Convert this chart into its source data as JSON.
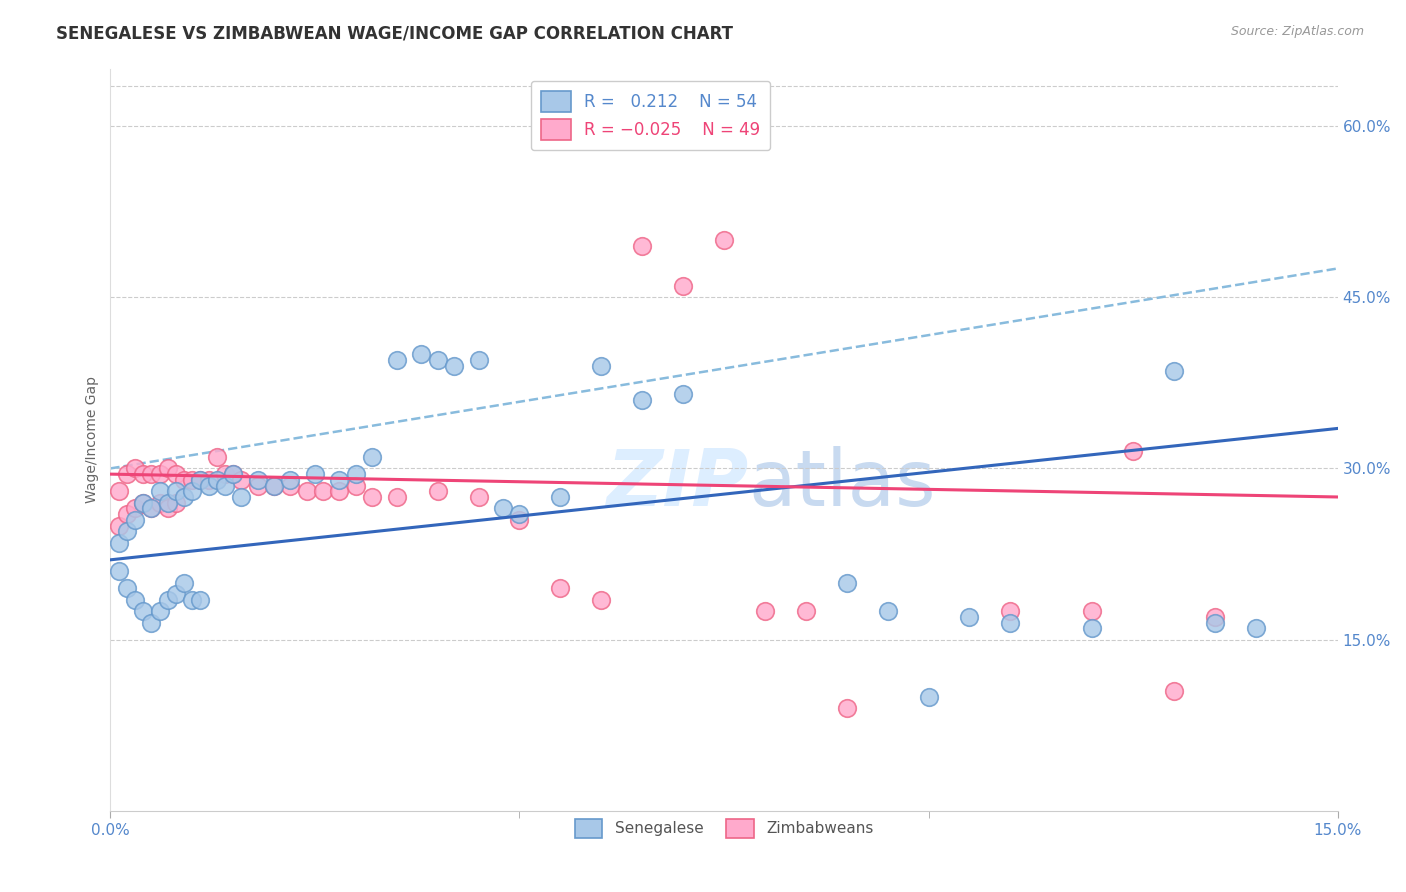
{
  "title": "SENEGALESE VS ZIMBABWEAN WAGE/INCOME GAP CORRELATION CHART",
  "source": "Source: ZipAtlas.com",
  "ylabel": "Wage/Income Gap",
  "xlim": [
    0.0,
    0.15
  ],
  "ylim": [
    0.0,
    0.65
  ],
  "ytick_vals": [
    0.15,
    0.3,
    0.45,
    0.6
  ],
  "ytick_labels": [
    "15.0%",
    "30.0%",
    "45.0%",
    "60.0%"
  ],
  "xtick_vals": [
    0.0,
    0.15
  ],
  "xtick_labels": [
    "0.0%",
    "15.0%"
  ],
  "xtick_minor_vals": [
    0.05,
    0.1
  ],
  "dot_color_blue": "#a8c8e8",
  "dot_edge_blue": "#6699cc",
  "dot_color_pink": "#ffaacc",
  "dot_edge_pink": "#ee6688",
  "line_color_blue": "#3366bb",
  "line_color_pink": "#ee4477",
  "dash_color_blue": "#88bbdd",
  "grid_color": "#cccccc",
  "axis_color": "#5588cc",
  "watermark_color": "#ddeeff",
  "background_color": "#ffffff",
  "title_fontsize": 12,
  "label_fontsize": 10,
  "tick_fontsize": 11,
  "blue_line": [
    0.0,
    0.22,
    0.15,
    0.335
  ],
  "pink_line": [
    0.0,
    0.295,
    0.15,
    0.275
  ],
  "dash_line": [
    0.0,
    0.3,
    0.15,
    0.475
  ],
  "sen_x": [
    0.001,
    0.001,
    0.002,
    0.002,
    0.003,
    0.003,
    0.004,
    0.004,
    0.005,
    0.005,
    0.006,
    0.006,
    0.007,
    0.007,
    0.008,
    0.008,
    0.009,
    0.009,
    0.01,
    0.01,
    0.011,
    0.011,
    0.012,
    0.013,
    0.014,
    0.015,
    0.016,
    0.018,
    0.02,
    0.022,
    0.025,
    0.028,
    0.03,
    0.032,
    0.035,
    0.038,
    0.04,
    0.042,
    0.045,
    0.048,
    0.05,
    0.055,
    0.06,
    0.065,
    0.07,
    0.09,
    0.095,
    0.1,
    0.105,
    0.11,
    0.12,
    0.13,
    0.135,
    0.14
  ],
  "sen_y": [
    0.235,
    0.21,
    0.245,
    0.195,
    0.255,
    0.185,
    0.27,
    0.175,
    0.265,
    0.165,
    0.28,
    0.175,
    0.27,
    0.185,
    0.28,
    0.19,
    0.275,
    0.2,
    0.28,
    0.185,
    0.29,
    0.185,
    0.285,
    0.29,
    0.285,
    0.295,
    0.275,
    0.29,
    0.285,
    0.29,
    0.295,
    0.29,
    0.295,
    0.31,
    0.395,
    0.4,
    0.395,
    0.39,
    0.395,
    0.265,
    0.26,
    0.275,
    0.39,
    0.36,
    0.365,
    0.2,
    0.175,
    0.1,
    0.17,
    0.165,
    0.16,
    0.385,
    0.165,
    0.16
  ],
  "zim_x": [
    0.001,
    0.001,
    0.002,
    0.002,
    0.003,
    0.003,
    0.004,
    0.004,
    0.005,
    0.005,
    0.006,
    0.006,
    0.007,
    0.007,
    0.008,
    0.008,
    0.009,
    0.01,
    0.011,
    0.012,
    0.013,
    0.014,
    0.015,
    0.016,
    0.018,
    0.02,
    0.022,
    0.024,
    0.026,
    0.028,
    0.03,
    0.032,
    0.035,
    0.04,
    0.045,
    0.05,
    0.055,
    0.06,
    0.065,
    0.07,
    0.075,
    0.08,
    0.085,
    0.09,
    0.11,
    0.12,
    0.125,
    0.13,
    0.135
  ],
  "zim_y": [
    0.28,
    0.25,
    0.295,
    0.26,
    0.3,
    0.265,
    0.295,
    0.27,
    0.295,
    0.265,
    0.295,
    0.27,
    0.3,
    0.265,
    0.295,
    0.27,
    0.29,
    0.29,
    0.29,
    0.29,
    0.31,
    0.295,
    0.295,
    0.29,
    0.285,
    0.285,
    0.285,
    0.28,
    0.28,
    0.28,
    0.285,
    0.275,
    0.275,
    0.28,
    0.275,
    0.255,
    0.195,
    0.185,
    0.495,
    0.46,
    0.5,
    0.175,
    0.175,
    0.09,
    0.175,
    0.175,
    0.315,
    0.105,
    0.17
  ]
}
